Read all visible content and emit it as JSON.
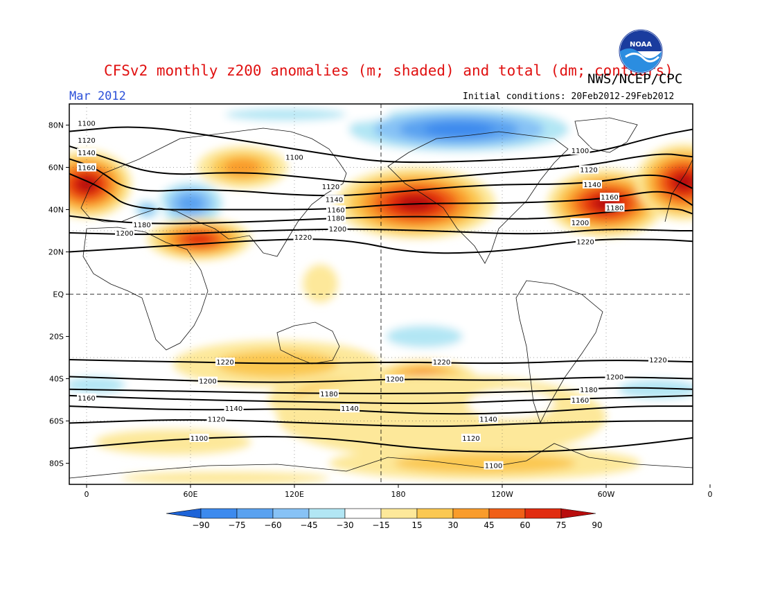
{
  "header": {
    "title": "CFSv2 monthly z200 anomalies (m; shaded) and total (dm; contours)",
    "org": "NWS/NCEP/CPC",
    "period": "Mar 2012",
    "initial_conditions": "Initial conditions: 20Feb2012-29Feb2012",
    "logo_text": "NOAA"
  },
  "map": {
    "lon_range": [
      -10,
      350
    ],
    "lat_range": [
      -90,
      90
    ],
    "y_labels": [
      {
        "lat": 80,
        "text": "80N"
      },
      {
        "lat": 60,
        "text": "60N"
      },
      {
        "lat": 40,
        "text": "40N"
      },
      {
        "lat": 20,
        "text": "20N"
      },
      {
        "lat": 0,
        "text": "EQ"
      },
      {
        "lat": -20,
        "text": "20S"
      },
      {
        "lat": -40,
        "text": "40S"
      },
      {
        "lat": -60,
        "text": "60S"
      },
      {
        "lat": -80,
        "text": "80S"
      }
    ],
    "x_labels": [
      {
        "lon": 0,
        "text": "0"
      },
      {
        "lon": 60,
        "text": "60E"
      },
      {
        "lon": 120,
        "text": "120E"
      },
      {
        "lon": 180,
        "text": "180"
      },
      {
        "lon": 240,
        "text": "120W"
      },
      {
        "lon": 300,
        "text": "60W"
      },
      {
        "lon": 360,
        "text": "0"
      }
    ],
    "anomalies": [
      {
        "lon": 0,
        "lat": 52,
        "rx": 26,
        "ry": 16,
        "level": 90
      },
      {
        "lon": 60,
        "lat": 43,
        "rx": 24,
        "ry": 13,
        "level": -60
      },
      {
        "lon": 35,
        "lat": 40,
        "rx": 10,
        "ry": 6,
        "level": -45
      },
      {
        "lon": 90,
        "lat": 60,
        "rx": 26,
        "ry": 10,
        "level": 45
      },
      {
        "lon": 65,
        "lat": 26,
        "rx": 30,
        "ry": 10,
        "level": 75
      },
      {
        "lon": 190,
        "lat": 43,
        "rx": 46,
        "ry": 17,
        "level": 90
      },
      {
        "lon": 300,
        "lat": 43,
        "rx": 34,
        "ry": 16,
        "level": 90
      },
      {
        "lon": 345,
        "lat": 53,
        "rx": 28,
        "ry": 18,
        "level": 90
      },
      {
        "lon": 215,
        "lat": 78,
        "rx": 78,
        "ry": 13,
        "level": -75
      },
      {
        "lon": 115,
        "lat": 85,
        "rx": 60,
        "ry": 5,
        "level": -30
      },
      {
        "lon": 135,
        "lat": 5,
        "rx": 10,
        "ry": 9,
        "level": 15
      },
      {
        "lon": 175,
        "lat": 18,
        "rx": 28,
        "ry": 7,
        "level": -15
      },
      {
        "lon": 262,
        "lat": 17,
        "rx": 22,
        "ry": 8,
        "level": -15
      },
      {
        "lon": 195,
        "lat": -20,
        "rx": 38,
        "ry": 9,
        "level": -30
      },
      {
        "lon": 335,
        "lat": -15,
        "rx": 22,
        "ry": 8,
        "level": -15
      },
      {
        "lon": 110,
        "lat": -33,
        "rx": 60,
        "ry": 11,
        "level": 30
      },
      {
        "lon": 150,
        "lat": -50,
        "rx": 45,
        "ry": 13,
        "level": 45
      },
      {
        "lon": 195,
        "lat": -40,
        "rx": 30,
        "ry": 9,
        "level": 60
      },
      {
        "lon": 205,
        "lat": -58,
        "rx": 95,
        "ry": 20,
        "level": 15
      },
      {
        "lon": 5,
        "lat": -43,
        "rx": 30,
        "ry": 7,
        "level": -30
      },
      {
        "lon": 330,
        "lat": -45,
        "rx": 40,
        "ry": 8,
        "level": -30
      },
      {
        "lon": 245,
        "lat": -52,
        "rx": 25,
        "ry": 7,
        "level": -15
      },
      {
        "lon": 230,
        "lat": -80,
        "rx": 90,
        "ry": 8,
        "level": 30
      },
      {
        "lon": 50,
        "lat": -70,
        "rx": 45,
        "ry": 6,
        "level": 15
      },
      {
        "lon": 80,
        "lat": -87,
        "rx": 60,
        "ry": 3,
        "level": 15
      }
    ],
    "contours": [
      {
        "label": "1100",
        "points": [
          [
            -10,
            77
          ],
          [
            30,
            80
          ],
          [
            80,
            74
          ],
          [
            140,
            66
          ],
          [
            175,
            62
          ],
          [
            230,
            63
          ],
          [
            290,
            66
          ],
          [
            330,
            75
          ],
          [
            350,
            78
          ]
        ],
        "labels": [
          {
            "lon": 0,
            "lat": 81,
            "text": "1100"
          },
          {
            "lon": 120,
            "lat": 65,
            "text": "1100"
          },
          {
            "lon": 285,
            "lat": 68,
            "text": "1100"
          }
        ]
      },
      {
        "label": "1120",
        "points": [
          [
            -10,
            70
          ],
          [
            10,
            65
          ],
          [
            40,
            56
          ],
          [
            90,
            58
          ],
          [
            130,
            55
          ],
          [
            165,
            52
          ],
          [
            230,
            57
          ],
          [
            285,
            60
          ],
          [
            330,
            67
          ],
          [
            350,
            65
          ]
        ],
        "labels": [
          {
            "lon": 0,
            "lat": 73,
            "text": "1120"
          },
          {
            "lon": 141,
            "lat": 51,
            "text": "1120"
          },
          {
            "lon": 290,
            "lat": 59,
            "text": "1120"
          }
        ]
      },
      {
        "label": "1140",
        "points": [
          [
            -10,
            64
          ],
          [
            5,
            60
          ],
          [
            25,
            48
          ],
          [
            70,
            50
          ],
          [
            135,
            46
          ],
          [
            175,
            48
          ],
          [
            230,
            52
          ],
          [
            290,
            52
          ],
          [
            330,
            58
          ],
          [
            350,
            50
          ]
        ],
        "labels": [
          {
            "lon": 0,
            "lat": 67,
            "text": "1140"
          },
          {
            "lon": 143,
            "lat": 45,
            "text": "1140"
          },
          {
            "lon": 292,
            "lat": 52,
            "text": "1140"
          }
        ]
      },
      {
        "label": "1160",
        "points": [
          [
            -10,
            57
          ],
          [
            10,
            50
          ],
          [
            25,
            40
          ],
          [
            80,
            40
          ],
          [
            140,
            40
          ],
          [
            185,
            43
          ],
          [
            250,
            43
          ],
          [
            300,
            45
          ],
          [
            335,
            50
          ],
          [
            350,
            42
          ]
        ],
        "labels": [
          {
            "lon": 0,
            "lat": 60,
            "text": "1160"
          },
          {
            "lon": 144,
            "lat": 40,
            "text": "1160"
          },
          {
            "lon": 302,
            "lat": 46,
            "text": "1160"
          }
        ]
      },
      {
        "label": "1180",
        "points": [
          [
            -10,
            37
          ],
          [
            30,
            33
          ],
          [
            90,
            34
          ],
          [
            145,
            36
          ],
          [
            200,
            37
          ],
          [
            260,
            35
          ],
          [
            300,
            39
          ],
          [
            340,
            41
          ],
          [
            350,
            38
          ]
        ],
        "labels": [
          {
            "lon": 32,
            "lat": 33,
            "text": "1180"
          },
          {
            "lon": 144,
            "lat": 36,
            "text": "1180"
          },
          {
            "lon": 305,
            "lat": 41,
            "text": "1180"
          }
        ]
      },
      {
        "label": "1200",
        "points": [
          [
            -10,
            29
          ],
          [
            40,
            28
          ],
          [
            100,
            30
          ],
          [
            150,
            31
          ],
          [
            200,
            30
          ],
          [
            260,
            28
          ],
          [
            300,
            31
          ],
          [
            340,
            30
          ],
          [
            350,
            30
          ]
        ],
        "labels": [
          {
            "lon": 22,
            "lat": 29,
            "text": "1200"
          },
          {
            "lon": 145,
            "lat": 31,
            "text": "1200"
          },
          {
            "lon": 285,
            "lat": 34,
            "text": "1200"
          }
        ]
      },
      {
        "label": "1220",
        "points": [
          [
            -10,
            20
          ],
          [
            50,
            23
          ],
          [
            110,
            26
          ],
          [
            150,
            26
          ],
          [
            190,
            19
          ],
          [
            240,
            20
          ],
          [
            290,
            26
          ],
          [
            330,
            26
          ],
          [
            350,
            25
          ]
        ],
        "labels": [
          {
            "lon": 125,
            "lat": 27,
            "text": "1220"
          },
          {
            "lon": 288,
            "lat": 25,
            "text": "1220"
          }
        ]
      },
      {
        "label": "1220S",
        "points": [
          [
            -10,
            -31
          ],
          [
            50,
            -32
          ],
          [
            120,
            -33
          ],
          [
            180,
            -32
          ],
          [
            240,
            -33
          ],
          [
            300,
            -31
          ],
          [
            350,
            -32
          ]
        ],
        "labels": [
          {
            "lon": 80,
            "lat": -32,
            "text": "1220"
          },
          {
            "lon": 205,
            "lat": -32,
            "text": "1220"
          },
          {
            "lon": 330,
            "lat": -31,
            "text": "1220"
          }
        ]
      },
      {
        "label": "1200S",
        "points": [
          [
            -10,
            -39
          ],
          [
            60,
            -41
          ],
          [
            120,
            -42
          ],
          [
            180,
            -40
          ],
          [
            240,
            -41
          ],
          [
            300,
            -39
          ],
          [
            350,
            -40
          ]
        ],
        "labels": [
          {
            "lon": 70,
            "lat": -41,
            "text": "1200"
          },
          {
            "lon": 178,
            "lat": -40,
            "text": "1200"
          },
          {
            "lon": 305,
            "lat": -39,
            "text": "1200"
          }
        ]
      },
      {
        "label": "1180S",
        "points": [
          [
            -10,
            -45
          ],
          [
            60,
            -46
          ],
          [
            130,
            -47
          ],
          [
            200,
            -47
          ],
          [
            260,
            -46
          ],
          [
            310,
            -44
          ],
          [
            350,
            -45
          ]
        ],
        "labels": [
          {
            "lon": 140,
            "lat": -47,
            "text": "1180"
          },
          {
            "lon": 290,
            "lat": -45,
            "text": "1180"
          }
        ]
      },
      {
        "label": "1160S",
        "points": [
          [
            -10,
            -48
          ],
          [
            60,
            -50
          ],
          [
            130,
            -51
          ],
          [
            200,
            -52
          ],
          [
            260,
            -50
          ],
          [
            310,
            -49
          ],
          [
            350,
            -48
          ]
        ],
        "labels": [
          {
            "lon": 0,
            "lat": -49,
            "text": "1160"
          },
          {
            "lon": 285,
            "lat": -50,
            "text": "1160"
          }
        ]
      },
      {
        "label": "1140S",
        "points": [
          [
            -10,
            -53
          ],
          [
            60,
            -55
          ],
          [
            130,
            -54
          ],
          [
            200,
            -57
          ],
          [
            260,
            -56
          ],
          [
            310,
            -53
          ],
          [
            350,
            -53
          ]
        ],
        "labels": [
          {
            "lon": 85,
            "lat": -54,
            "text": "1140"
          },
          {
            "lon": 152,
            "lat": -54,
            "text": "1140"
          },
          {
            "lon": 232,
            "lat": -59,
            "text": "1140"
          }
        ]
      },
      {
        "label": "1120S",
        "points": [
          [
            -10,
            -61
          ],
          [
            60,
            -59
          ],
          [
            130,
            -61
          ],
          [
            200,
            -63
          ],
          [
            260,
            -61
          ],
          [
            310,
            -60
          ],
          [
            350,
            -60
          ]
        ],
        "labels": [
          {
            "lon": 75,
            "lat": -59,
            "text": "1120"
          },
          {
            "lon": 222,
            "lat": -68,
            "text": "1120"
          }
        ]
      },
      {
        "label": "1100S",
        "points": [
          [
            -10,
            -73
          ],
          [
            60,
            -68
          ],
          [
            130,
            -67
          ],
          [
            200,
            -74
          ],
          [
            260,
            -75
          ],
          [
            310,
            -72
          ],
          [
            350,
            -68
          ]
        ],
        "labels": [
          {
            "lon": 65,
            "lat": -68,
            "text": "1100"
          },
          {
            "lon": 235,
            "lat": -81,
            "text": "1100"
          }
        ]
      }
    ]
  },
  "colorbar": {
    "levels": [
      "-90",
      "-75",
      "-60",
      "-45",
      "-30",
      "-15",
      "15",
      "30",
      "45",
      "60",
      "75",
      "90"
    ],
    "colors": [
      "#1e64d8",
      "#3c8aee",
      "#5aa2f0",
      "#87c2f5",
      "#b2e6f4",
      "#ffffff",
      "#fde89a",
      "#fbc851",
      "#f99c2b",
      "#f06018",
      "#e12c10",
      "#b80d0d"
    ]
  }
}
